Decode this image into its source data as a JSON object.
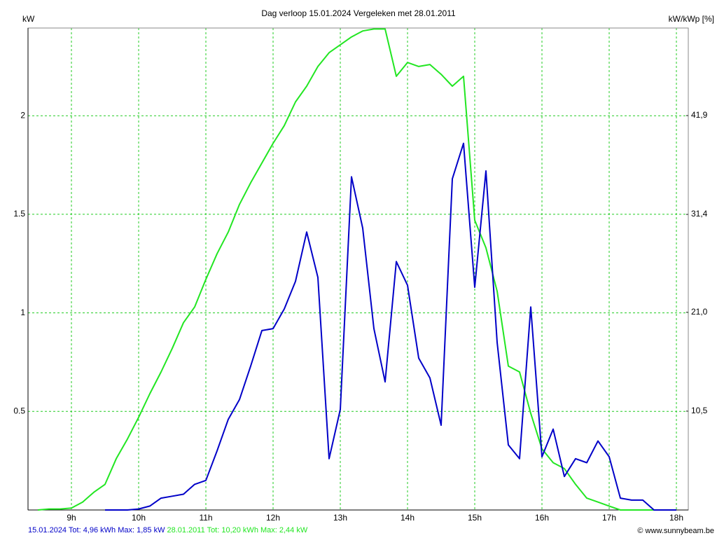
{
  "chart_data": {
    "type": "line",
    "title": "Dag  verloop 15.01.2024   Vergeleken met 28.01.2011",
    "y_label": "kW",
    "y2_label": "kW/kWp [%]",
    "credit": "© www.sunnybeam.be",
    "x": [
      8.5,
      8.667,
      8.833,
      9,
      9.167,
      9.333,
      9.5,
      9.667,
      9.833,
      10,
      10.167,
      10.333,
      10.5,
      10.667,
      10.833,
      11,
      11.167,
      11.333,
      11.5,
      11.667,
      11.833,
      12,
      12.167,
      12.333,
      12.5,
      12.667,
      12.833,
      13,
      13.167,
      13.333,
      13.5,
      13.667,
      13.833,
      14,
      14.167,
      14.333,
      14.5,
      14.667,
      14.833,
      15,
      15.167,
      15.333,
      15.5,
      15.667,
      15.833,
      16,
      16.167,
      16.333,
      16.5,
      16.667,
      16.833,
      17,
      17.167,
      17.333,
      17.5,
      17.667,
      17.833,
      18
    ],
    "series": [
      {
        "name": "15.01.2024 Tot: 4,96 kWh Max: 1,85 kW",
        "color": "#0000c8",
        "values": [
          null,
          null,
          null,
          null,
          null,
          null,
          0,
          0,
          0,
          0.005,
          0.02,
          0.06,
          0.07,
          0.08,
          0.13,
          0.15,
          0.3,
          0.46,
          0.56,
          0.73,
          0.91,
          0.92,
          1.02,
          1.16,
          1.41,
          1.18,
          0.26,
          0.51,
          1.69,
          1.43,
          0.92,
          0.65,
          1.26,
          1.14,
          0.77,
          0.67,
          0.43,
          1.68,
          1.86,
          1.13,
          1.72,
          0.85,
          0.33,
          0.26,
          1.03,
          0.27,
          0.41,
          0.17,
          0.26,
          0.24,
          0.35,
          0.27,
          0.06,
          0.05,
          0.05,
          0,
          0,
          0
        ]
      },
      {
        "name": "28.01.2011 Tot: 10,20 kWh Max: 2,44 kW",
        "color": "#22e622",
        "values": [
          0,
          0.005,
          0.005,
          0.01,
          0.04,
          0.09,
          0.13,
          0.26,
          0.36,
          0.47,
          0.59,
          0.7,
          0.82,
          0.95,
          1.03,
          1.17,
          1.3,
          1.41,
          1.55,
          1.66,
          1.76,
          1.86,
          1.95,
          2.07,
          2.15,
          2.25,
          2.32,
          2.36,
          2.4,
          2.43,
          2.44,
          2.44,
          2.2,
          2.27,
          2.25,
          2.26,
          2.21,
          2.15,
          2.2,
          1.47,
          1.33,
          1.11,
          0.73,
          0.7,
          0.49,
          0.31,
          0.24,
          0.21,
          0.13,
          0.06,
          0.04,
          0.02,
          0,
          0,
          0,
          0,
          0,
          0
        ]
      }
    ],
    "xlim": [
      8.354,
      18.177
    ],
    "xticks": [
      {
        "value": 9,
        "label": "9h"
      },
      {
        "value": 10,
        "label": "10h"
      },
      {
        "value": 11,
        "label": "11h"
      },
      {
        "value": 12,
        "label": "12h"
      },
      {
        "value": 13,
        "label": "13h"
      },
      {
        "value": 14,
        "label": "14h"
      },
      {
        "value": 15,
        "label": "15h"
      },
      {
        "value": 16,
        "label": "16h"
      },
      {
        "value": 17,
        "label": "17h"
      },
      {
        "value": 18,
        "label": "18h"
      }
    ],
    "ylim": [
      0,
      2.445
    ],
    "yticks": [
      0.5,
      1,
      1.5,
      2
    ],
    "y2lim": [
      0,
      51.2
    ],
    "y2ticks": [
      {
        "value": 10.5,
        "label": "10,5"
      },
      {
        "value": 21.0,
        "label": "21,0"
      },
      {
        "value": 31.4,
        "label": "31,4"
      },
      {
        "value": 41.9,
        "label": "41,9"
      }
    ],
    "grid": true,
    "grid_color": "#22cc22"
  }
}
